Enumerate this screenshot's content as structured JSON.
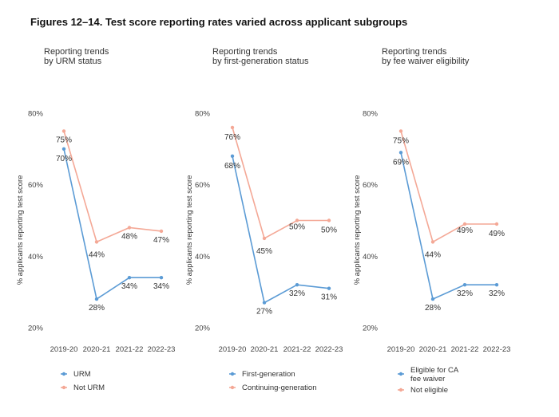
{
  "title": "Figures 12–14. Test score reporting rates varied across applicant subgroups",
  "chart_data": [
    {
      "type": "line",
      "title": "Reporting trends by URM status",
      "title_lines": [
        "Reporting trends",
        "by URM status"
      ],
      "ylabel": "% applicants reporting test score",
      "categories": [
        "2019-20",
        "2020-21",
        "2021-22",
        "2022-23"
      ],
      "ylim": [
        20,
        80
      ],
      "yticks": [
        {
          "v": 20,
          "label": "20%"
        },
        {
          "v": 40,
          "label": "40%"
        },
        {
          "v": 60,
          "label": "60%"
        },
        {
          "v": 80,
          "label": "80%"
        }
      ],
      "grid": false,
      "legend_position": "bottom",
      "series": [
        {
          "name": "URM",
          "name_lines": [
            "URM"
          ],
          "color": "#5b9bd5",
          "values": [
            70,
            28,
            34,
            34
          ],
          "labels": [
            "70%",
            "28%",
            "34%",
            "34%"
          ]
        },
        {
          "name": "Not URM",
          "name_lines": [
            "Not URM"
          ],
          "color": "#f4a896",
          "values": [
            75,
            44,
            48,
            47
          ],
          "labels": [
            "75%",
            "44%",
            "48%",
            "47%"
          ]
        }
      ]
    },
    {
      "type": "line",
      "title": "Reporting trends by first-generation status",
      "title_lines": [
        "Reporting trends",
        "by first-generation status"
      ],
      "ylabel": "% applicants reporting test score",
      "categories": [
        "2019-20",
        "2020-21",
        "2021-22",
        "2022-23"
      ],
      "ylim": [
        20,
        80
      ],
      "yticks": [
        {
          "v": 20,
          "label": "20%"
        },
        {
          "v": 40,
          "label": "40%"
        },
        {
          "v": 60,
          "label": "60%"
        },
        {
          "v": 80,
          "label": "80%"
        }
      ],
      "grid": false,
      "legend_position": "bottom",
      "series": [
        {
          "name": "First-generation",
          "name_lines": [
            "First-generation"
          ],
          "color": "#5b9bd5",
          "values": [
            68,
            27,
            32,
            31
          ],
          "labels": [
            "68%",
            "27%",
            "32%",
            "31%"
          ]
        },
        {
          "name": "Continuing-generation",
          "name_lines": [
            "Continuing-generation"
          ],
          "color": "#f4a896",
          "values": [
            76,
            45,
            50,
            50
          ],
          "labels": [
            "76%",
            "45%",
            "50%",
            "50%"
          ]
        }
      ]
    },
    {
      "type": "line",
      "title": "Reporting trends by fee waiver eligibility",
      "title_lines": [
        "Reporting trends",
        "by fee waiver eligibility"
      ],
      "ylabel": "% applicants reporting test score",
      "categories": [
        "2019-20",
        "2020-21",
        "2021-22",
        "2022-23"
      ],
      "ylim": [
        20,
        80
      ],
      "yticks": [
        {
          "v": 20,
          "label": "20%"
        },
        {
          "v": 40,
          "label": "40%"
        },
        {
          "v": 60,
          "label": "60%"
        },
        {
          "v": 80,
          "label": "80%"
        }
      ],
      "grid": false,
      "legend_position": "bottom",
      "series": [
        {
          "name": "Eligible for CA fee waiver",
          "name_lines": [
            "Eligible for CA",
            "fee waiver"
          ],
          "color": "#5b9bd5",
          "values": [
            69,
            28,
            32,
            32
          ],
          "labels": [
            "69%",
            "28%",
            "32%",
            "32%"
          ]
        },
        {
          "name": "Not eligible",
          "name_lines": [
            "Not eligible"
          ],
          "color": "#f4a896",
          "values": [
            75,
            44,
            49,
            49
          ],
          "labels": [
            "75%",
            "44%",
            "49%",
            "49%"
          ]
        }
      ]
    }
  ]
}
